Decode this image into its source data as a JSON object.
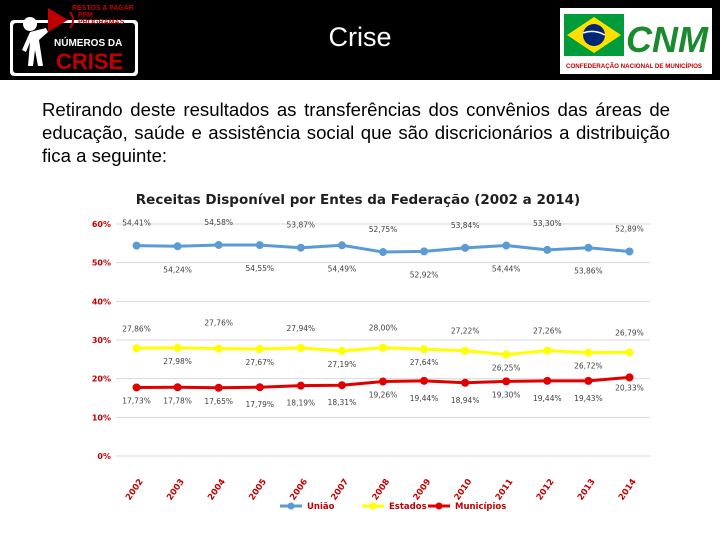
{
  "header": {
    "title": "Crise",
    "logo_left": {
      "line1": "RESTOS A PAGAR",
      "line2": "FPM",
      "line3": "PROGRAMAS",
      "line4": "NÚMEROS DA",
      "line5": "CRISE"
    },
    "logo_right": {
      "acronym": "CNM",
      "subtitle": "CONFEDERAÇÃO NACIONAL DE MUNICÍPIOS"
    }
  },
  "intro_text": "Retirando deste resultados as transferências dos convênios das áreas de educação, saúde e assistência social que são discricionários a distribuição fica a seguinte:",
  "colors": {
    "uniao": "#5b9bd5",
    "estados": "#ffff00",
    "municipios": "#e00000",
    "axis_label": "#c00000",
    "grid": "#d9d9d9"
  },
  "chart_data": {
    "type": "line",
    "title": "Receitas Disponível por Entes da Federação (2002 a 2014)",
    "categories": [
      "2002",
      "2003",
      "2004",
      "2005",
      "2006",
      "2007",
      "2008",
      "2009",
      "2010",
      "2011",
      "2012",
      "2013",
      "2014"
    ],
    "yticks": [
      "0%",
      "10%",
      "20%",
      "30%",
      "40%",
      "50%",
      "60%"
    ],
    "ylim": [
      0,
      60
    ],
    "series": [
      {
        "name": "União",
        "values": [
          54.41,
          54.24,
          54.58,
          54.55,
          53.87,
          54.49,
          52.75,
          52.92,
          53.84,
          54.44,
          53.3,
          53.86,
          52.89
        ],
        "labels": [
          "54,41%",
          "54,24%",
          "54,58%",
          "54,55%",
          "53,87%",
          "54,49%",
          "52,75%",
          "52,92%",
          "53,84%",
          "54,44%",
          "53,30%",
          "53,86%",
          "52,89%"
        ]
      },
      {
        "name": "Estados",
        "values": [
          27.86,
          27.98,
          27.76,
          27.67,
          27.94,
          27.19,
          28.0,
          27.64,
          27.22,
          26.25,
          27.26,
          26.72,
          26.79
        ],
        "labels": [
          "27,86%",
          "27,98%",
          "27,76%",
          "27,67%",
          "27,94%",
          "27,19%",
          "28,00%",
          "27,64%",
          "27,22%",
          "26,25%",
          "27,26%",
          "26,72%",
          "26,79%"
        ]
      },
      {
        "name": "Municípios",
        "values": [
          17.73,
          17.78,
          17.65,
          17.79,
          18.19,
          18.31,
          19.26,
          19.44,
          18.94,
          19.3,
          19.44,
          19.43,
          20.33
        ],
        "labels": [
          "17,73%",
          "17,78%",
          "17,65%",
          "17,79%",
          "18,19%",
          "18,31%",
          "19,26%",
          "19,44%",
          "18,94%",
          "19,30%",
          "19,44%",
          "19,43%",
          "20,33%"
        ]
      }
    ]
  }
}
